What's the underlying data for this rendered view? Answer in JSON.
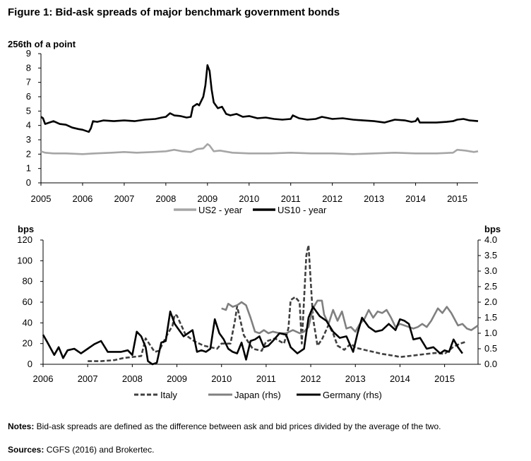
{
  "figure": {
    "title": "Figure 1: Bid-ask spreads of major benchmark government bonds",
    "notes_label": "Notes:",
    "notes_text": " Bid-ask spreads are defined as the difference between ask and bid prices divided by the average of the two.",
    "sources_label": "Sources:",
    "sources_text": " CGFS (2016) and Brokertec."
  },
  "chart_data": [
    {
      "type": "line",
      "ylabel": "256th of a point",
      "xlim": [
        2005,
        2015.5
      ],
      "ylim": [
        0,
        9
      ],
      "x_ticks": [
        2005,
        2006,
        2007,
        2008,
        2009,
        2010,
        2011,
        2012,
        2013,
        2014,
        2015
      ],
      "x_tick_labels": [
        "2005",
        "2006",
        "2007",
        "2008",
        "2009",
        "2010",
        "2011",
        "2012",
        "2013",
        "2014",
        "2015"
      ],
      "y_ticks": [
        0,
        1,
        2,
        3,
        4,
        5,
        6,
        7,
        8,
        9
      ],
      "y_tick_labels": [
        "0",
        "1",
        "2",
        "3",
        "4",
        "5",
        "6",
        "7",
        "8",
        "9"
      ],
      "grid": false,
      "legend_position": "bottom",
      "series": [
        {
          "name": "US2 - year",
          "color": "#a6a6a6",
          "style": "solid",
          "x": [
            2005.0,
            2005.1,
            2005.3,
            2005.6,
            2006.0,
            2006.3,
            2006.7,
            2007.0,
            2007.3,
            2007.7,
            2008.0,
            2008.2,
            2008.4,
            2008.6,
            2008.75,
            2008.9,
            2009.0,
            2009.05,
            2009.15,
            2009.3,
            2009.6,
            2010.0,
            2010.5,
            2011.0,
            2011.5,
            2012.0,
            2012.5,
            2013.0,
            2013.5,
            2014.0,
            2014.5,
            2014.9,
            2015.0,
            2015.2,
            2015.4,
            2015.5
          ],
          "values": [
            2.2,
            2.1,
            2.05,
            2.05,
            2.0,
            2.05,
            2.1,
            2.15,
            2.1,
            2.15,
            2.2,
            2.3,
            2.2,
            2.15,
            2.35,
            2.4,
            2.7,
            2.6,
            2.2,
            2.25,
            2.1,
            2.05,
            2.05,
            2.1,
            2.05,
            2.05,
            2.0,
            2.05,
            2.1,
            2.05,
            2.05,
            2.1,
            2.3,
            2.25,
            2.15,
            2.2
          ]
        },
        {
          "name": "US10 - year",
          "color": "#000000",
          "style": "solid",
          "x": [
            2005.0,
            2005.05,
            2005.1,
            2005.2,
            2005.3,
            2005.45,
            2005.6,
            2005.75,
            2005.9,
            2006.0,
            2006.1,
            2006.15,
            2006.2,
            2006.25,
            2006.35,
            2006.5,
            2006.75,
            2007.0,
            2007.25,
            2007.5,
            2007.75,
            2007.9,
            2008.0,
            2008.1,
            2008.2,
            2008.35,
            2008.5,
            2008.6,
            2008.65,
            2008.75,
            2008.8,
            2008.9,
            2008.95,
            2009.0,
            2009.05,
            2009.1,
            2009.15,
            2009.25,
            2009.35,
            2009.45,
            2009.55,
            2009.7,
            2009.85,
            2010.0,
            2010.2,
            2010.4,
            2010.6,
            2010.8,
            2011.0,
            2011.05,
            2011.2,
            2011.4,
            2011.6,
            2011.75,
            2012.0,
            2012.25,
            2012.5,
            2012.75,
            2013.0,
            2013.25,
            2013.5,
            2013.75,
            2013.9,
            2014.0,
            2014.05,
            2014.1,
            2014.25,
            2014.5,
            2014.75,
            2014.9,
            2015.0,
            2015.15,
            2015.3,
            2015.5
          ],
          "values": [
            4.6,
            4.5,
            4.1,
            4.2,
            4.3,
            4.1,
            4.05,
            3.85,
            3.75,
            3.7,
            3.6,
            3.55,
            3.8,
            4.3,
            4.25,
            4.35,
            4.3,
            4.35,
            4.3,
            4.4,
            4.45,
            4.55,
            4.6,
            4.85,
            4.7,
            4.65,
            4.55,
            4.6,
            5.3,
            5.5,
            5.4,
            6.0,
            6.8,
            8.2,
            7.8,
            6.5,
            5.6,
            5.2,
            5.3,
            4.8,
            4.7,
            4.8,
            4.6,
            4.65,
            4.5,
            4.55,
            4.45,
            4.4,
            4.45,
            4.7,
            4.5,
            4.4,
            4.45,
            4.6,
            4.45,
            4.5,
            4.4,
            4.35,
            4.3,
            4.2,
            4.4,
            4.35,
            4.25,
            4.3,
            4.5,
            4.2,
            4.2,
            4.2,
            4.25,
            4.3,
            4.4,
            4.45,
            4.35,
            4.3
          ]
        }
      ]
    },
    {
      "type": "line",
      "ylabel": "bps",
      "y2label": "bps",
      "xlim": [
        2006,
        2015.75
      ],
      "ylim": [
        0,
        120
      ],
      "y2lim": [
        0,
        4.0
      ],
      "x_ticks": [
        2006,
        2007,
        2008,
        2009,
        2010,
        2011,
        2012,
        2013,
        2014,
        2015
      ],
      "x_tick_labels": [
        "2006",
        "2007",
        "2008",
        "2009",
        "2010",
        "2011",
        "2012",
        "2013",
        "2014",
        "2015"
      ],
      "y_ticks": [
        0,
        20,
        40,
        60,
        80,
        100,
        120
      ],
      "y_tick_labels": [
        "0",
        "20",
        "40",
        "60",
        "80",
        "100",
        "120"
      ],
      "y2_ticks": [
        0,
        0.5,
        1.0,
        1.5,
        2.0,
        2.5,
        3.0,
        3.5,
        4.0
      ],
      "y2_tick_labels": [
        "0.0",
        "0.5",
        "1.0",
        "1.5",
        "2.0",
        "2.5",
        "3.0",
        "3.5",
        "4.0"
      ],
      "grid": false,
      "legend_position": "bottom",
      "series": [
        {
          "name": "Italy",
          "axis": "left",
          "color": "#404040",
          "style": "dashed",
          "x": [
            2007.0,
            2007.3,
            2007.6,
            2007.8,
            2008.0,
            2008.2,
            2008.3,
            2008.5,
            2008.6,
            2008.8,
            2008.9,
            2008.95,
            2009.0,
            2009.2,
            2009.4,
            2009.6,
            2009.9,
            2010.0,
            2010.2,
            2010.3,
            2010.35,
            2010.5,
            2010.7,
            2010.9,
            2011.0,
            2011.2,
            2011.4,
            2011.5,
            2011.55,
            2011.65,
            2011.75,
            2011.8,
            2011.9,
            2011.95,
            2012.05,
            2012.15,
            2012.25,
            2012.4,
            2012.5,
            2012.6,
            2012.75,
            2012.9,
            2013.0,
            2013.2,
            2013.4,
            2013.6,
            2013.9,
            2014.0,
            2014.2,
            2014.4,
            2014.6,
            2014.8,
            2015.0,
            2015.2,
            2015.35,
            2015.5
          ],
          "values": [
            3,
            3,
            4,
            6,
            7,
            8,
            25,
            12,
            13,
            30,
            37,
            48,
            47,
            28,
            22,
            18,
            15,
            20,
            20,
            42,
            56,
            28,
            15,
            13,
            22,
            25,
            20,
            35,
            62,
            65,
            60,
            20,
            105,
            115,
            45,
            18,
            24,
            38,
            30,
            18,
            14,
            20,
            16,
            14,
            12,
            10,
            8,
            7,
            8,
            9,
            10,
            11,
            10,
            17,
            20,
            22
          ]
        },
        {
          "name": "Japan (rhs)",
          "axis": "right",
          "color": "#808080",
          "style": "solid",
          "x": [
            2010.0,
            2010.1,
            2010.15,
            2010.25,
            2010.35,
            2010.45,
            2010.55,
            2010.65,
            2010.75,
            2010.85,
            2010.95,
            2011.05,
            2011.15,
            2011.3,
            2011.45,
            2011.6,
            2011.75,
            2011.85,
            2011.95,
            2012.05,
            2012.15,
            2012.25,
            2012.3,
            2012.4,
            2012.5,
            2012.6,
            2012.7,
            2012.8,
            2012.9,
            2013.0,
            2013.1,
            2013.2,
            2013.3,
            2013.4,
            2013.5,
            2013.6,
            2013.7,
            2013.8,
            2013.9,
            2014.0,
            2014.1,
            2014.2,
            2014.3,
            2014.4,
            2014.5,
            2014.6,
            2014.7,
            2014.85,
            2014.95,
            2015.05,
            2015.15,
            2015.3,
            2015.4,
            2015.5,
            2015.6,
            2015.75
          ],
          "values": [
            1.8,
            1.75,
            1.95,
            1.85,
            1.9,
            2.0,
            1.9,
            1.5,
            1.05,
            1.0,
            1.1,
            1.0,
            1.05,
            1.0,
            1.0,
            1.1,
            1.0,
            1.05,
            1.2,
            1.8,
            2.05,
            2.05,
            1.6,
            1.3,
            1.75,
            1.4,
            1.7,
            1.15,
            1.2,
            1.05,
            1.3,
            1.45,
            1.75,
            1.5,
            1.7,
            1.65,
            1.75,
            1.5,
            1.2,
            1.3,
            1.25,
            1.2,
            1.15,
            1.2,
            1.3,
            1.2,
            1.4,
            1.8,
            1.65,
            1.85,
            1.65,
            1.25,
            1.3,
            1.15,
            1.1,
            1.25
          ]
        },
        {
          "name": "Germany (rhs)",
          "axis": "right",
          "color": "#000000",
          "style": "solid",
          "x": [
            2006.0,
            2006.1,
            2006.25,
            2006.35,
            2006.45,
            2006.55,
            2006.7,
            2006.85,
            2007.0,
            2007.15,
            2007.3,
            2007.45,
            2007.6,
            2007.75,
            2007.9,
            2008.0,
            2008.1,
            2008.2,
            2008.3,
            2008.35,
            2008.45,
            2008.55,
            2008.65,
            2008.75,
            2008.85,
            2008.95,
            2009.05,
            2009.15,
            2009.25,
            2009.35,
            2009.45,
            2009.55,
            2009.65,
            2009.75,
            2009.85,
            2009.95,
            2010.05,
            2010.15,
            2010.25,
            2010.35,
            2010.45,
            2010.55,
            2010.65,
            2010.75,
            2010.85,
            2010.95,
            2011.05,
            2011.15,
            2011.3,
            2011.45,
            2011.55,
            2011.7,
            2011.85,
            2011.95,
            2012.05,
            2012.2,
            2012.35,
            2012.5,
            2012.65,
            2012.8,
            2012.95,
            2013.05,
            2013.15,
            2013.3,
            2013.45,
            2013.6,
            2013.75,
            2013.9,
            2014.0,
            2014.1,
            2014.2,
            2014.3,
            2014.45,
            2014.6,
            2014.75,
            2014.9,
            2015.0,
            2015.1,
            2015.2,
            2015.3,
            2015.4
          ],
          "values": [
            0.95,
            0.7,
            0.3,
            0.55,
            0.2,
            0.45,
            0.5,
            0.35,
            0.5,
            0.65,
            0.75,
            0.4,
            0.4,
            0.4,
            0.45,
            0.3,
            1.05,
            0.9,
            0.55,
            0.1,
            0.0,
            0.05,
            0.7,
            0.75,
            1.7,
            1.3,
            1.1,
            0.9,
            1.0,
            1.1,
            0.4,
            0.45,
            0.4,
            0.5,
            1.45,
            1.0,
            0.8,
            0.5,
            0.4,
            0.35,
            0.7,
            0.15,
            0.75,
            0.8,
            0.9,
            0.55,
            0.6,
            0.75,
            1.0,
            0.95,
            0.55,
            0.35,
            0.5,
            1.5,
            1.85,
            1.55,
            1.4,
            1.05,
            0.85,
            0.9,
            0.4,
            1.0,
            1.5,
            1.2,
            1.05,
            1.1,
            1.3,
            1.1,
            1.45,
            1.4,
            1.3,
            0.8,
            0.85,
            0.5,
            0.55,
            0.35,
            0.45,
            0.4,
            0.8,
            0.55,
            0.35
          ]
        }
      ]
    }
  ]
}
